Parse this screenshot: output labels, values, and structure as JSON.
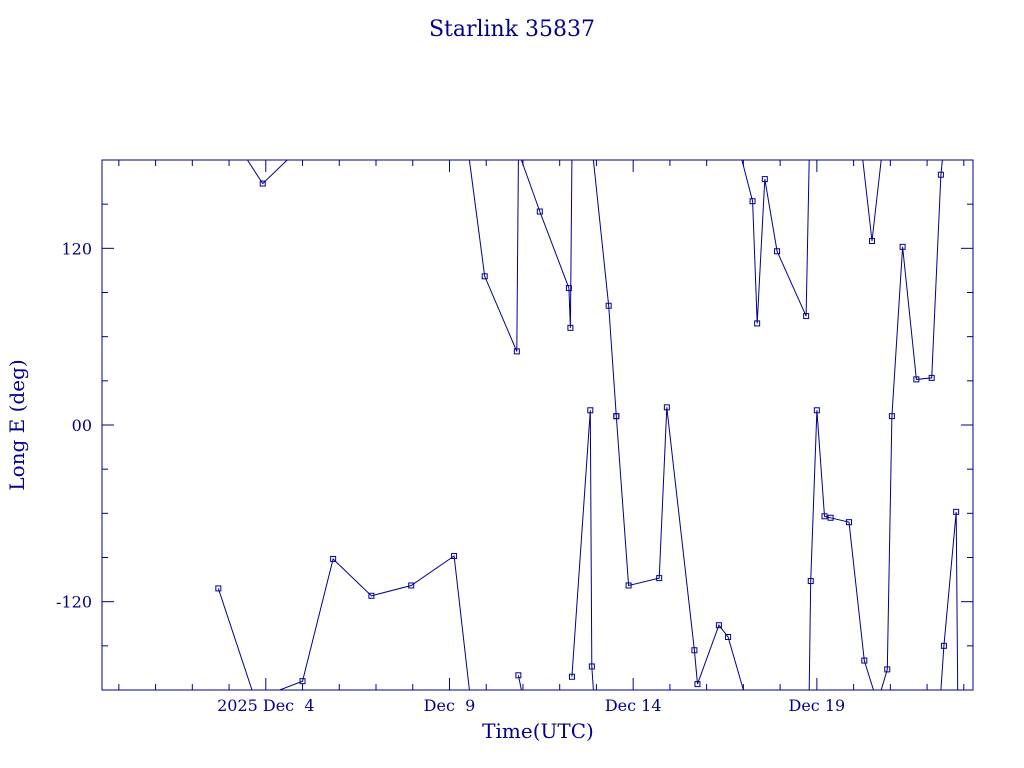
{
  "chart_data": {
    "type": "line",
    "title": "Starlink 35837",
    "xlabel": "Time(UTC)",
    "ylabel": "Long E (deg)",
    "x_ticks": [
      {
        "value": "2025-12-04",
        "label": "2025 Dec  4"
      },
      {
        "value": "2025-12-09",
        "label": "Dec  9"
      },
      {
        "value": "2025-12-14",
        "label": "Dec 14"
      },
      {
        "value": "2025-12-19",
        "label": "Dec 19"
      }
    ],
    "y_ticks": [
      {
        "value": 120,
        "label": "120"
      },
      {
        "value": 0,
        "label": "00"
      },
      {
        "value": -120,
        "label": "-120"
      }
    ],
    "xlim": [
      "2025-11-29T13:00",
      "2025-12-23T06:00"
    ],
    "ylim": [
      -180,
      180
    ],
    "colors": {
      "line": "#00008b",
      "axes": "#00008b",
      "text": "#00008b"
    },
    "series": [
      {
        "segments": [
          [
            [
              "2025-12-02T17:00",
              -111
            ],
            [
              "2025-12-03T15:00",
              -180
            ]
          ],
          [
            [
              "2025-12-03T12:00",
              180
            ],
            [
              "2025-12-03T22:00",
              164
            ],
            [
              "2025-12-04T14:00",
              180
            ]
          ],
          [
            [
              "2025-12-04T09:00",
              -180
            ],
            [
              "2025-12-05T00:00",
              -174
            ],
            [
              "2025-12-05T20:00",
              -91
            ],
            [
              "2025-12-06T21:00",
              -116
            ],
            [
              "2025-12-07T23:00",
              -109
            ],
            [
              "2025-12-09T03:00",
              -89
            ],
            [
              "2025-12-09T13:00",
              -180
            ]
          ],
          [
            [
              "2025-12-09T13:00",
              180
            ],
            [
              "2025-12-09T23:00",
              101
            ],
            [
              "2025-12-10T20:00",
              50
            ],
            [
              "2025-12-10T21:00",
              180
            ]
          ],
          [
            [
              "2025-12-10T21:00",
              -170
            ],
            [
              "2025-12-10T23:00",
              -180
            ]
          ],
          [
            [
              "2025-12-10T23:00",
              180
            ],
            [
              "2025-12-11T11:00",
              145
            ],
            [
              "2025-12-12T06:00",
              93
            ],
            [
              "2025-12-12T07:00",
              66
            ],
            [
              "2025-12-12T08:00",
              180
            ]
          ],
          [
            [
              "2025-12-12T08:00",
              -171
            ],
            [
              "2025-12-12T20:00",
              10
            ],
            [
              "2025-12-12T21:00",
              -164
            ],
            [
              "2025-12-12T22:00",
              -180
            ]
          ],
          [
            [
              "2025-12-12T22:00",
              180
            ],
            [
              "2025-12-13T08:00",
              81
            ],
            [
              "2025-12-13T13:00",
              6
            ]
          ],
          [
            [
              "2025-12-13T13:00",
              6
            ],
            [
              "2025-12-13T21:00",
              -109
            ],
            [
              "2025-12-14T17:00",
              -104
            ],
            [
              "2025-12-14T22:00",
              12
            ],
            [
              "2025-12-15T16:00",
              -153
            ],
            [
              "2025-12-15T18:00",
              -176
            ],
            [
              "2025-12-16T08:00",
              -136
            ],
            [
              "2025-12-16T14:00",
              -144
            ],
            [
              "2025-12-17T00:00",
              -180
            ]
          ],
          [
            [
              "2025-12-16T23:00",
              180
            ],
            [
              "2025-12-17T06:00",
              152
            ],
            [
              "2025-12-17T09:00",
              69
            ],
            [
              "2025-12-17T14:00",
              167
            ],
            [
              "2025-12-17T22:00",
              118
            ],
            [
              "2025-12-18T17:00",
              74
            ],
            [
              "2025-12-18T19:00",
              180
            ]
          ],
          [
            [
              "2025-12-18T19:00",
              -180
            ],
            [
              "2025-12-18T20:00",
              -106
            ],
            [
              "2025-12-19T00:00",
              10
            ],
            [
              "2025-12-19T05:00",
              -62
            ],
            [
              "2025-12-19T09:00",
              -63
            ],
            [
              "2025-12-19T21:00",
              -66
            ],
            [
              "2025-12-20T07:00",
              -160
            ],
            [
              "2025-12-20T13:00",
              -180
            ]
          ],
          [
            [
              "2025-12-20T06:00",
              180
            ],
            [
              "2025-12-20T12:00",
              125
            ],
            [
              "2025-12-20T18:00",
              180
            ]
          ],
          [
            [
              "2025-12-20T18:00",
              -180
            ],
            [
              "2025-12-20T22:00",
              -166
            ],
            [
              "2025-12-21T01:00",
              6
            ],
            [
              "2025-12-21T08:00",
              121
            ],
            [
              "2025-12-21T17:00",
              31
            ],
            [
              "2025-12-22T03:00",
              32
            ],
            [
              "2025-12-22T09:00",
              170
            ],
            [
              "2025-12-22T10:00",
              180
            ]
          ],
          [
            [
              "2025-12-22T09:00",
              -180
            ],
            [
              "2025-12-22T11:00",
              -150
            ],
            [
              "2025-12-22T19:00",
              -59
            ],
            [
              "2025-12-22T20:00",
              -180
            ]
          ],
          [
            [
              "2025-12-22T20:00",
              180
            ],
            [
              "2025-12-23T00:00",
              180
            ]
          ]
        ]
      }
    ]
  }
}
